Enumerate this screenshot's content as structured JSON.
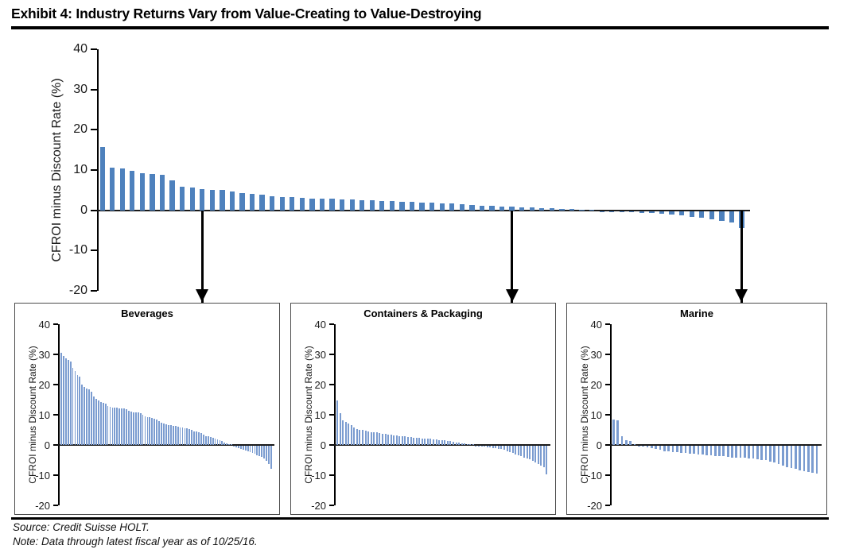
{
  "title": "Exhibit 4: Industry Returns Vary from Value-Creating to Value-Destroying",
  "source_line": "Source: Credit Suisse HOLT.",
  "note_line": "Note: Data through latest fiscal year as of 10/25/16.",
  "colors": {
    "main_bar": "#4E81BD",
    "sub_bar": "#7B9CD0",
    "axis": "#000000",
    "panel_border": "#4c4c4c"
  },
  "annotations": {
    "arrows": [
      {
        "to": "Beverages",
        "bar_index": 10
      },
      {
        "to": "Containers & Packaging",
        "bar_index": 41
      },
      {
        "to": "Marine",
        "bar_index": 64
      }
    ]
  },
  "chart_data": [
    {
      "type": "bar",
      "title": "",
      "xlabel": "",
      "ylabel": "CFROI minus Discount Rate (%)",
      "ylim": [
        -20,
        40
      ],
      "yticks": [
        40,
        30,
        20,
        10,
        0,
        -10,
        -20
      ],
      "grid": false,
      "legend": "none",
      "description": "All industries ranked from value-creating to value-destroying",
      "values": [
        15.7,
        10.5,
        10.3,
        9.8,
        9.2,
        9.0,
        8.9,
        7.4,
        5.9,
        5.7,
        5.3,
        5.1,
        5.0,
        4.7,
        4.3,
        4.0,
        3.8,
        3.4,
        3.3,
        3.2,
        3.1,
        2.9,
        2.9,
        2.8,
        2.7,
        2.6,
        2.5,
        2.5,
        2.4,
        2.3,
        2.2,
        2.1,
        2.0,
        1.9,
        1.8,
        1.7,
        1.6,
        1.4,
        1.2,
        1.1,
        1.0,
        0.9,
        0.8,
        0.7,
        0.6,
        0.5,
        0.4,
        0.3,
        0.2,
        0.1,
        -0.1,
        -0.1,
        -0.2,
        -0.3,
        -0.4,
        -0.5,
        -0.7,
        -0.9,
        -1.1,
        -1.4,
        -1.7,
        -2.0,
        -2.4,
        -2.9,
        -4.3
      ]
    },
    {
      "type": "bar",
      "title": "Beverages",
      "xlabel": "",
      "ylabel": "CFROI minus Discount Rate (%)",
      "ylim": [
        -20,
        40
      ],
      "yticks": [
        40,
        30,
        20,
        10,
        0,
        -10,
        -20
      ],
      "grid": false,
      "legend": "none",
      "values": [
        30.5,
        29.6,
        28.6,
        28.2,
        27.6,
        25.6,
        24.6,
        23.1,
        22.6,
        19.9,
        19.3,
        18.8,
        18.3,
        17.6,
        16.0,
        15.2,
        14.7,
        14.3,
        14.0,
        13.8,
        12.9,
        12.6,
        12.5,
        12.4,
        12.3,
        12.2,
        12.1,
        12.0,
        11.9,
        11.2,
        11.0,
        10.9,
        10.8,
        10.8,
        10.5,
        10.0,
        9.6,
        9.3,
        9.1,
        8.9,
        8.8,
        8.5,
        7.8,
        7.4,
        7.0,
        6.8,
        6.7,
        6.5,
        6.4,
        6.2,
        6.1,
        5.9,
        5.8,
        5.6,
        5.5,
        5.3,
        5.1,
        4.6,
        4.4,
        4.2,
        4.0,
        3.3,
        3.0,
        2.8,
        2.6,
        2.3,
        2.0,
        1.8,
        1.5,
        1.2,
        0.9,
        0.6,
        0.3,
        0.1,
        -0.2,
        -0.6,
        -0.9,
        -1.1,
        -1.4,
        -1.7,
        -2.0,
        -2.2,
        -2.5,
        -2.8,
        -3.1,
        -3.4,
        -3.8,
        -4.3,
        -5.0,
        -6.0,
        -7.6
      ]
    },
    {
      "type": "bar",
      "title": "Containers & Packaging",
      "xlabel": "",
      "ylabel": "CFROI minus Discount Rate (%)",
      "ylim": [
        -20,
        40
      ],
      "yticks": [
        40,
        30,
        20,
        10,
        0,
        -10,
        -20
      ],
      "grid": false,
      "legend": "none",
      "values": [
        14.8,
        10.4,
        8.1,
        7.6,
        7.1,
        6.6,
        5.7,
        5.3,
        5.1,
        4.9,
        4.7,
        4.5,
        4.3,
        4.2,
        4.1,
        4.0,
        3.8,
        3.6,
        3.4,
        3.3,
        3.2,
        3.1,
        3.0,
        2.9,
        2.8,
        2.7,
        2.6,
        2.5,
        2.4,
        2.3,
        2.2,
        2.1,
        2.0,
        2.0,
        1.9,
        1.8,
        1.7,
        1.6,
        1.5,
        1.4,
        1.2,
        1.0,
        0.8,
        0.7,
        0.5,
        0.4,
        0.3,
        0.2,
        0.1,
        -0.1,
        -0.2,
        -0.3,
        -0.4,
        -0.5,
        -0.6,
        -0.8,
        -0.9,
        -1.0,
        -1.2,
        -1.5,
        -1.8,
        -2.1,
        -2.5,
        -3.0,
        -3.3,
        -3.6,
        -3.9,
        -4.2,
        -4.6,
        -5.0,
        -5.5,
        -6.0,
        -6.6,
        -7.2,
        -9.5
      ]
    },
    {
      "type": "bar",
      "title": "Marine",
      "xlabel": "",
      "ylabel": "CFROI minus Discount Rate (%)",
      "ylim": [
        -20,
        40
      ],
      "yticks": [
        40,
        30,
        20,
        10,
        0,
        -10,
        -20
      ],
      "grid": false,
      "legend": "none",
      "values": [
        8.4,
        8.1,
        2.9,
        1.6,
        1.4,
        0.1,
        -0.2,
        -0.4,
        -0.7,
        -0.9,
        -1.2,
        -1.5,
        -1.8,
        -2.0,
        -2.1,
        -2.3,
        -2.4,
        -2.5,
        -2.6,
        -2.8,
        -3.0,
        -3.0,
        -3.2,
        -3.3,
        -3.4,
        -3.5,
        -3.5,
        -3.7,
        -3.9,
        -4.0,
        -4.0,
        -4.1,
        -4.3,
        -4.4,
        -4.5,
        -4.7,
        -4.9,
        -5.2,
        -5.7,
        -6.2,
        -6.7,
        -7.1,
        -7.5,
        -7.8,
        -8.1,
        -8.4,
        -8.7,
        -9.0,
        -9.2
      ]
    }
  ]
}
